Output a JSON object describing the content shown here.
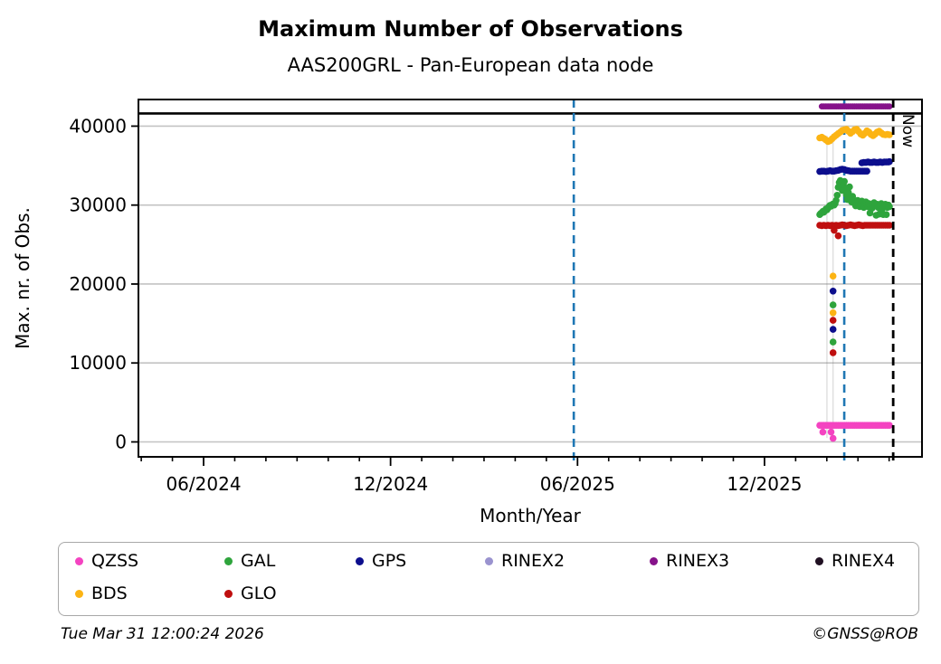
{
  "title": "Maximum Number of Observations",
  "subtitle": "AAS200GRL - Pan-European data node",
  "footer": {
    "timestamp": "Tue Mar 31 12:00:24 2026",
    "credit": "©GNSS@ROB"
  },
  "legend": {
    "items": [
      {
        "label": "QZSS",
        "color": "#f443c1"
      },
      {
        "label": "GAL",
        "color": "#2ea43c"
      },
      {
        "label": "GPS",
        "color": "#0c0e8d"
      },
      {
        "label": "RINEX2",
        "color": "#9a93cf"
      },
      {
        "label": "RINEX3",
        "color": "#86128a"
      },
      {
        "label": "RINEX4",
        "color": "#201022"
      },
      {
        "label": "BDS",
        "color": "#fcb414"
      },
      {
        "label": "GLO",
        "color": "#bf0f0f"
      }
    ]
  },
  "chart_data": {
    "type": "scatter",
    "title": "Maximum Number of Observations",
    "subtitle": "AAS200GRL - Pan-European data node",
    "xlabel": "Month/Year",
    "ylabel": "Max. nr. of Obs.",
    "ylim": [
      0,
      43300
    ],
    "yticks": [
      0,
      10000,
      20000,
      30000,
      40000
    ],
    "x_major_ticks": [
      {
        "label": "06/2024",
        "month_offset": 0
      },
      {
        "label": "12/2024",
        "month_offset": 6
      },
      {
        "label": "06/2025",
        "month_offset": 12
      },
      {
        "label": "12/2025",
        "month_offset": 18
      }
    ],
    "x_minor_tick_month_offsets": [
      -2,
      -1,
      1,
      2,
      3,
      4,
      5,
      7,
      8,
      9,
      10,
      11,
      13,
      14,
      15,
      16,
      17,
      19,
      20,
      21,
      22,
      23
    ],
    "grid": "horizontal light gray lines at each y tick",
    "legend_position": "bottom",
    "x_encoding": "day = days since first plotted observation (late Jan 2026); month_offset = months since 06/2024",
    "annotations": {
      "black_hline": {
        "value": 41600,
        "color": "#000000",
        "note": "solid black line across full plot width"
      },
      "blue_dashed_vlines_month_offset": [
        11.88,
        20.56
      ],
      "now_line": {
        "month_offset": 22.13,
        "label": "Now",
        "color": "#000000",
        "style": "dashed"
      },
      "faint_connector_lines_days": [
        7,
        13
      ]
    },
    "series": [
      {
        "name": "RINEX3",
        "color": "#86128a",
        "marker_r": 3.4,
        "points": [
          [
            2,
            42500
          ],
          [
            4,
            42500
          ],
          [
            6,
            42500
          ],
          [
            8,
            42500
          ],
          [
            10,
            42500
          ],
          [
            12,
            42500
          ],
          [
            14,
            42500
          ],
          [
            16,
            42500
          ],
          [
            18,
            42500
          ],
          [
            20,
            42500
          ],
          [
            22,
            42500
          ],
          [
            24,
            42500
          ],
          [
            26,
            42500
          ],
          [
            28,
            42500
          ],
          [
            30,
            42500
          ],
          [
            32,
            42500
          ],
          [
            34,
            42500
          ],
          [
            36,
            42500
          ],
          [
            38,
            42500
          ],
          [
            40,
            42500
          ],
          [
            42,
            42500
          ],
          [
            44,
            42500
          ],
          [
            46,
            42500
          ],
          [
            48,
            42500
          ],
          [
            50,
            42500
          ],
          [
            52,
            42500
          ],
          [
            54,
            42500
          ],
          [
            56,
            42500
          ],
          [
            58,
            42500
          ],
          [
            60,
            42500
          ],
          [
            62,
            42500
          ],
          [
            64,
            42500
          ],
          [
            66,
            42500
          ],
          [
            68,
            42500
          ]
        ]
      },
      {
        "name": "RINEX2",
        "color": "#9a93cf",
        "marker_r": 3.4,
        "points": []
      },
      {
        "name": "RINEX4",
        "color": "#201022",
        "marker_r": 3.4,
        "points": []
      },
      {
        "name": "BDS",
        "color": "#fcb414",
        "marker_r": 3.8,
        "points": [
          [
            0,
            38500
          ],
          [
            2,
            38600
          ],
          [
            4,
            38450
          ],
          [
            6,
            38250
          ],
          [
            8,
            38050
          ],
          [
            10,
            38150
          ],
          [
            12,
            38400
          ],
          [
            14,
            38650
          ],
          [
            16,
            38850
          ],
          [
            18,
            39050
          ],
          [
            20,
            39250
          ],
          [
            22,
            39450
          ],
          [
            24,
            39550
          ],
          [
            26,
            39600
          ],
          [
            28,
            39350
          ],
          [
            30,
            39100
          ],
          [
            32,
            39300
          ],
          [
            34,
            39550
          ],
          [
            36,
            39600
          ],
          [
            38,
            39300
          ],
          [
            40,
            39000
          ],
          [
            42,
            38850
          ],
          [
            44,
            39100
          ],
          [
            46,
            39400
          ],
          [
            48,
            39250
          ],
          [
            50,
            38950
          ],
          [
            52,
            38800
          ],
          [
            54,
            39000
          ],
          [
            56,
            39250
          ],
          [
            58,
            39350
          ],
          [
            60,
            39150
          ],
          [
            62,
            38950
          ],
          [
            64,
            38900
          ],
          [
            66,
            38950
          ],
          [
            68,
            38900
          ],
          [
            13,
            21000
          ],
          [
            13,
            16350
          ]
        ]
      },
      {
        "name": "GPS",
        "color": "#0c0e8d",
        "marker_r": 3.8,
        "points": [
          [
            0,
            34250
          ],
          [
            2,
            34300
          ],
          [
            4,
            34300
          ],
          [
            6,
            34250
          ],
          [
            8,
            34300
          ],
          [
            10,
            34350
          ],
          [
            12,
            34300
          ],
          [
            14,
            34300
          ],
          [
            16,
            34350
          ],
          [
            18,
            34400
          ],
          [
            20,
            34500
          ],
          [
            22,
            34550
          ],
          [
            24,
            34500
          ],
          [
            26,
            34400
          ],
          [
            28,
            34350
          ],
          [
            30,
            34300
          ],
          [
            32,
            34300
          ],
          [
            34,
            34300
          ],
          [
            36,
            34300
          ],
          [
            38,
            34300
          ],
          [
            40,
            34300
          ],
          [
            42,
            34300
          ],
          [
            44,
            34300
          ],
          [
            46,
            34300
          ],
          [
            41,
            35350
          ],
          [
            43,
            35400
          ],
          [
            45,
            35400
          ],
          [
            47,
            35450
          ],
          [
            49,
            35400
          ],
          [
            51,
            35400
          ],
          [
            53,
            35450
          ],
          [
            55,
            35400
          ],
          [
            57,
            35400
          ],
          [
            59,
            35450
          ],
          [
            61,
            35400
          ],
          [
            63,
            35450
          ],
          [
            65,
            35450
          ],
          [
            67,
            35450
          ],
          [
            68,
            35500
          ],
          [
            13,
            19100
          ],
          [
            13,
            14250
          ]
        ]
      },
      {
        "name": "GAL",
        "color": "#2ea43c",
        "marker_r": 3.8,
        "points": [
          [
            0,
            28800
          ],
          [
            1,
            28950
          ],
          [
            2,
            29050
          ],
          [
            3,
            29200
          ],
          [
            4,
            29100
          ],
          [
            5,
            29300
          ],
          [
            6,
            29500
          ],
          [
            7,
            29400
          ],
          [
            8,
            29600
          ],
          [
            9,
            29800
          ],
          [
            10,
            29950
          ],
          [
            11,
            29850
          ],
          [
            12,
            30050
          ],
          [
            13,
            30150
          ],
          [
            14,
            30000
          ],
          [
            15,
            30200
          ],
          [
            16,
            30600
          ],
          [
            17,
            31250
          ],
          [
            18,
            32250
          ],
          [
            19,
            32850
          ],
          [
            20,
            33100
          ],
          [
            21,
            32450
          ],
          [
            22,
            31850
          ],
          [
            23,
            32600
          ],
          [
            24,
            33000
          ],
          [
            25,
            32100
          ],
          [
            26,
            31300
          ],
          [
            27,
            30700
          ],
          [
            28,
            31600
          ],
          [
            29,
            32300
          ],
          [
            30,
            30900
          ],
          [
            31,
            30400
          ],
          [
            32,
            31100
          ],
          [
            33,
            30600
          ],
          [
            34,
            30200
          ],
          [
            35,
            29900
          ],
          [
            36,
            30300
          ],
          [
            37,
            30600
          ],
          [
            38,
            30100
          ],
          [
            39,
            29800
          ],
          [
            40,
            30200
          ],
          [
            41,
            30500
          ],
          [
            42,
            30000
          ],
          [
            43,
            29700
          ],
          [
            44,
            30100
          ],
          [
            45,
            30400
          ],
          [
            46,
            30000
          ],
          [
            47,
            29800
          ],
          [
            48,
            30200
          ],
          [
            49,
            29000
          ],
          [
            50,
            29900
          ],
          [
            51,
            29600
          ],
          [
            52,
            30000
          ],
          [
            53,
            30300
          ],
          [
            54,
            29900
          ],
          [
            55,
            28700
          ],
          [
            56,
            30100
          ],
          [
            57,
            29700
          ],
          [
            58,
            28850
          ],
          [
            59,
            30000
          ],
          [
            60,
            30200
          ],
          [
            61,
            29500
          ],
          [
            62,
            28800
          ],
          [
            63,
            29900
          ],
          [
            64,
            30100
          ],
          [
            65,
            28800
          ],
          [
            66,
            29700
          ],
          [
            67,
            30000
          ],
          [
            68,
            29800
          ],
          [
            13,
            17350
          ],
          [
            13,
            12650
          ]
        ]
      },
      {
        "name": "GLO",
        "color": "#bf0f0f",
        "marker_r": 3.8,
        "points": [
          [
            0,
            27450
          ],
          [
            2,
            27400
          ],
          [
            4,
            27450
          ],
          [
            6,
            27400
          ],
          [
            8,
            27450
          ],
          [
            10,
            27400
          ],
          [
            12,
            27450
          ],
          [
            14,
            27400
          ],
          [
            16,
            27450
          ],
          [
            18,
            27400
          ],
          [
            20,
            27450
          ],
          [
            22,
            27500
          ],
          [
            24,
            27450
          ],
          [
            26,
            27400
          ],
          [
            28,
            27450
          ],
          [
            30,
            27500
          ],
          [
            32,
            27450
          ],
          [
            34,
            27400
          ],
          [
            36,
            27450
          ],
          [
            38,
            27500
          ],
          [
            40,
            27450
          ],
          [
            42,
            27400
          ],
          [
            44,
            27450
          ],
          [
            46,
            27450
          ],
          [
            48,
            27450
          ],
          [
            50,
            27450
          ],
          [
            52,
            27450
          ],
          [
            54,
            27450
          ],
          [
            56,
            27450
          ],
          [
            58,
            27450
          ],
          [
            60,
            27450
          ],
          [
            62,
            27450
          ],
          [
            64,
            27450
          ],
          [
            66,
            27450
          ],
          [
            68,
            27450
          ],
          [
            14,
            26800
          ],
          [
            18,
            26100
          ],
          [
            13,
            15400
          ],
          [
            13,
            11300
          ]
        ]
      },
      {
        "name": "QZSS",
        "color": "#f443c1",
        "marker_r": 3.8,
        "points": [
          [
            0,
            2100
          ],
          [
            2,
            2100
          ],
          [
            4,
            2100
          ],
          [
            6,
            2100
          ],
          [
            8,
            2100
          ],
          [
            10,
            2100
          ],
          [
            12,
            2100
          ],
          [
            14,
            2100
          ],
          [
            16,
            2100
          ],
          [
            18,
            2100
          ],
          [
            20,
            2100
          ],
          [
            22,
            2100
          ],
          [
            24,
            2100
          ],
          [
            26,
            2100
          ],
          [
            28,
            2100
          ],
          [
            30,
            2100
          ],
          [
            32,
            2100
          ],
          [
            34,
            2100
          ],
          [
            36,
            2100
          ],
          [
            38,
            2100
          ],
          [
            40,
            2100
          ],
          [
            42,
            2100
          ],
          [
            44,
            2100
          ],
          [
            46,
            2100
          ],
          [
            48,
            2100
          ],
          [
            50,
            2100
          ],
          [
            52,
            2100
          ],
          [
            54,
            2100
          ],
          [
            56,
            2100
          ],
          [
            58,
            2100
          ],
          [
            60,
            2100
          ],
          [
            62,
            2100
          ],
          [
            64,
            2100
          ],
          [
            66,
            2100
          ],
          [
            68,
            2100
          ],
          [
            3,
            1250
          ],
          [
            11,
            1250
          ],
          [
            13,
            450
          ]
        ]
      }
    ]
  }
}
